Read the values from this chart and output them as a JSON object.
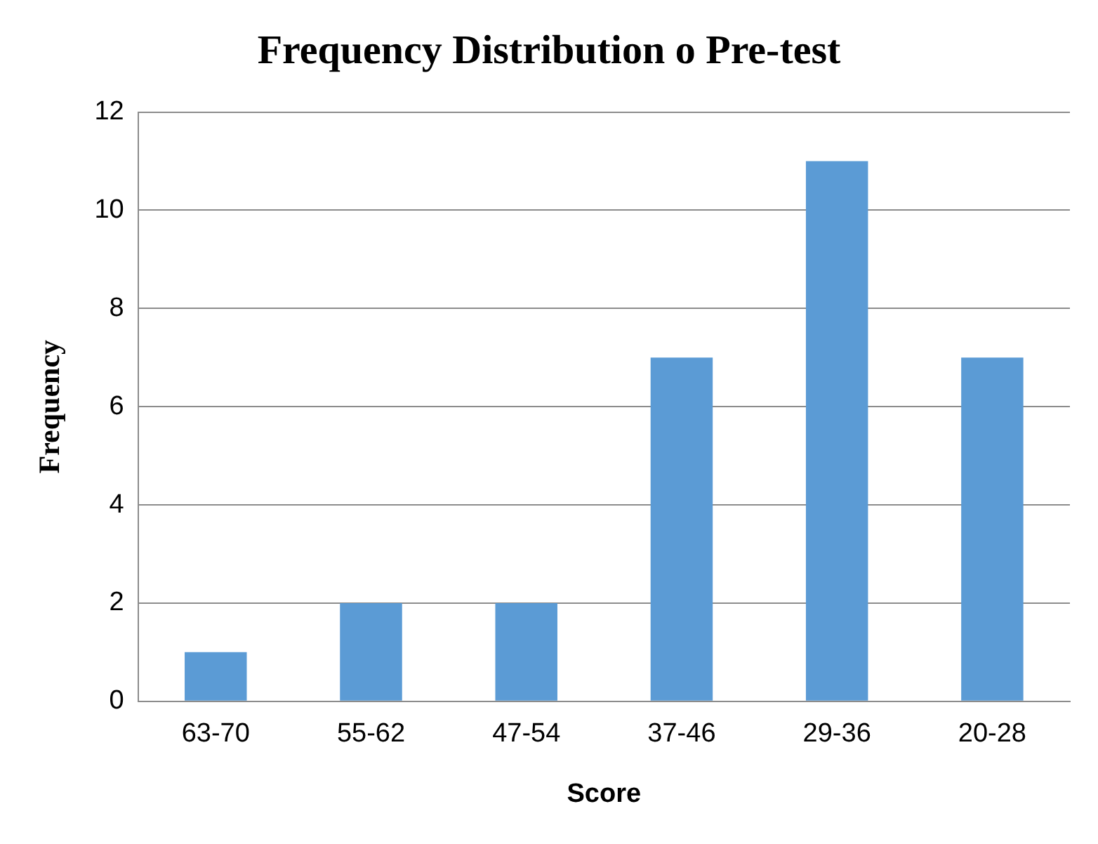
{
  "chart_data": {
    "type": "bar",
    "title": "Frequency Distribution o Pre-test",
    "xlabel": "Score",
    "ylabel": "Frequency",
    "categories": [
      "63-70",
      "55-62",
      "47-54",
      "37-46",
      "29-36",
      "20-28"
    ],
    "values": [
      1,
      2,
      2,
      7,
      11,
      7
    ],
    "color": "#5b9bd5",
    "ylim": [
      0,
      12
    ],
    "yticks": [
      0,
      2,
      4,
      6,
      8,
      10,
      12
    ],
    "grid": "y",
    "legend": false
  }
}
